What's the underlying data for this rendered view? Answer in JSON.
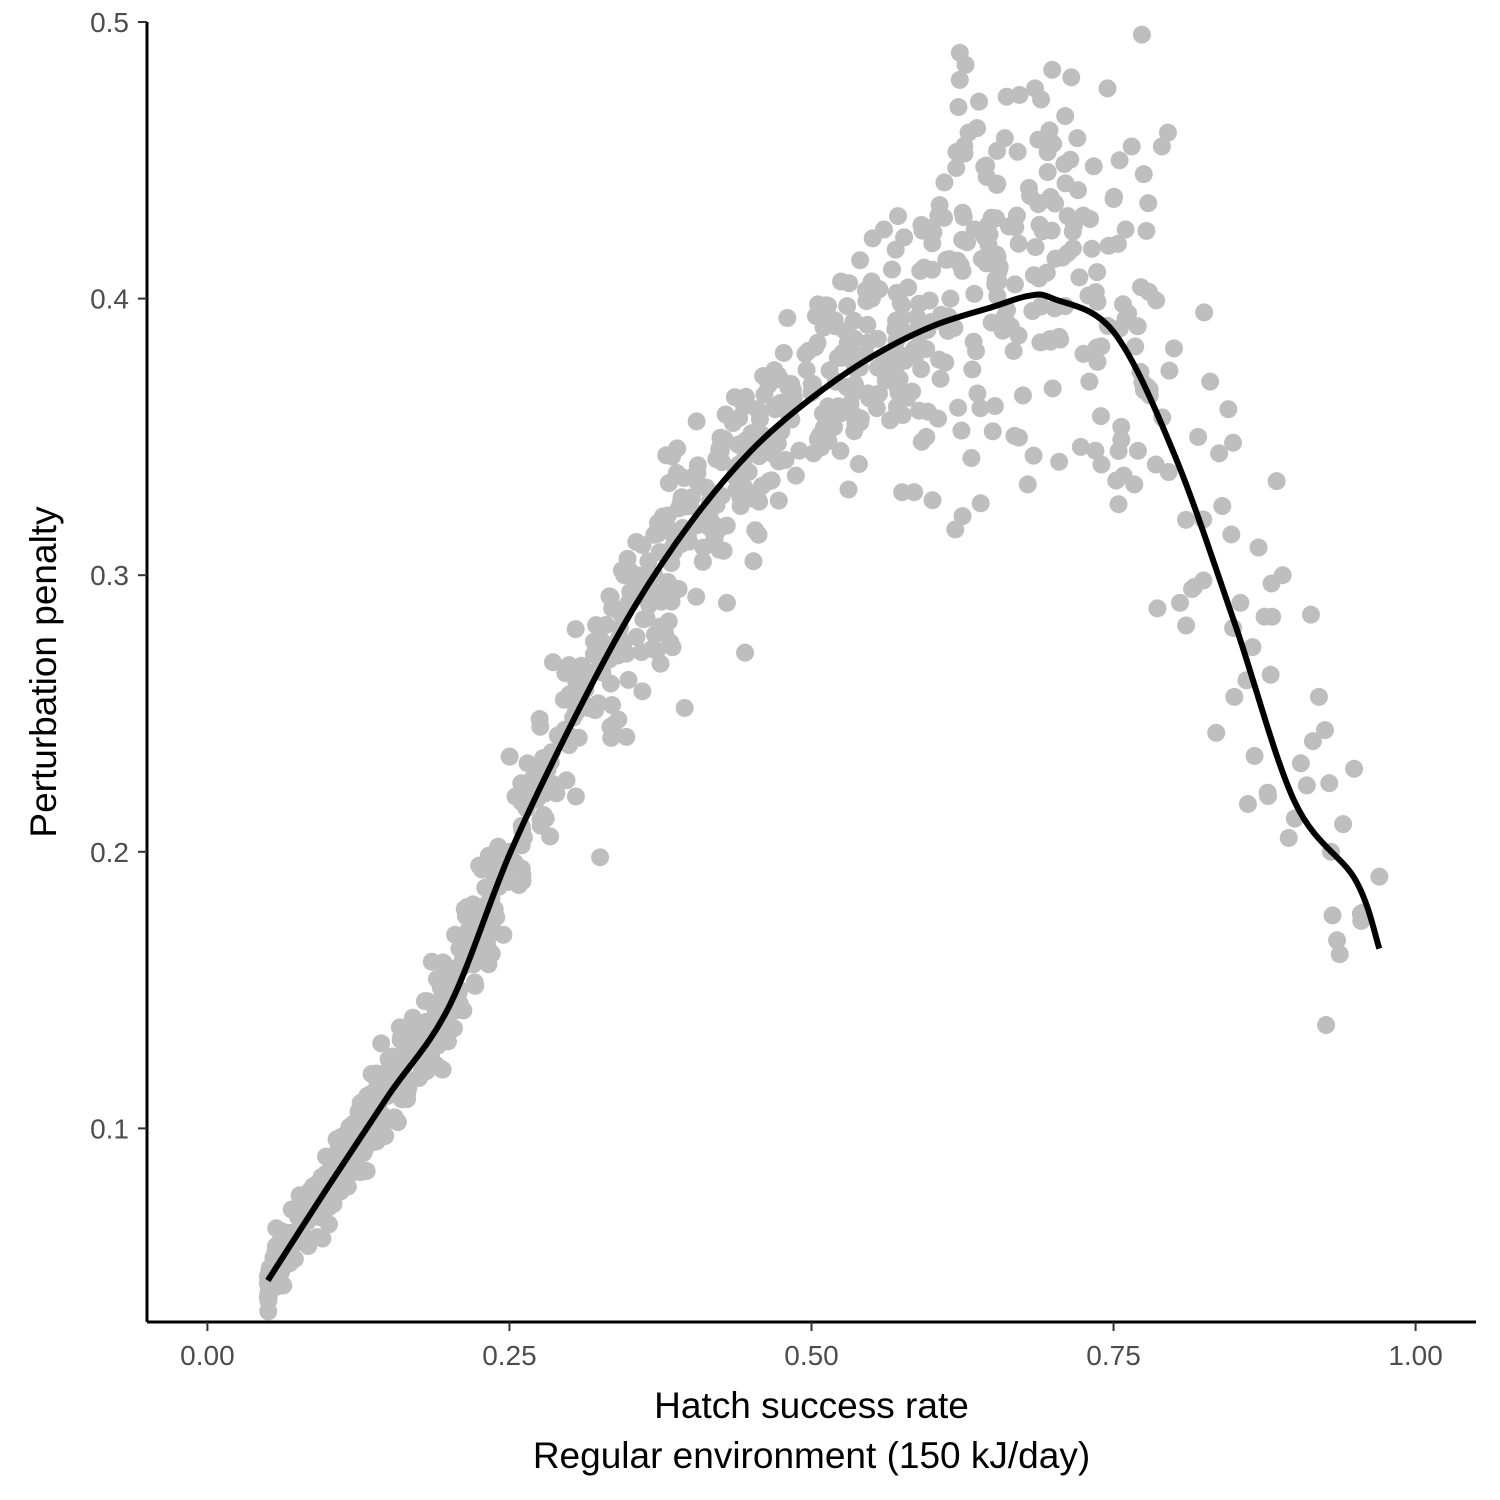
{
  "chart_data": {
    "type": "scatter",
    "xlabel": "Hatch success rate",
    "xlabel2": "Regular environment (150 kJ/day)",
    "ylabel": "Perturbation penalty",
    "xlim": [
      -0.05,
      1.05
    ],
    "ylim": [
      0.03,
      0.5
    ],
    "x_ticks": [
      0.0,
      0.25,
      0.5,
      0.75,
      1.0
    ],
    "x_tick_labels": [
      "0.00",
      "0.25",
      "0.50",
      "0.75",
      "1.00"
    ],
    "y_ticks": [
      0.1,
      0.2,
      0.3,
      0.4,
      0.5
    ],
    "y_tick_labels": [
      "0.1",
      "0.2",
      "0.3",
      "0.4",
      "0.5"
    ],
    "grid": false,
    "legend": "none",
    "colors": {
      "points": "#bebebe",
      "curve": "#000000",
      "axis": "#000000"
    },
    "series": [
      {
        "kind": "points",
        "approximate_count": 1000,
        "points": [
          [
            0.05,
            0.044
          ],
          [
            0.055,
            0.052
          ],
          [
            0.06,
            0.047
          ],
          [
            0.065,
            0.058
          ],
          [
            0.07,
            0.062
          ],
          [
            0.075,
            0.068
          ],
          [
            0.08,
            0.066
          ],
          [
            0.085,
            0.072
          ],
          [
            0.09,
            0.077
          ],
          [
            0.095,
            0.071
          ],
          [
            0.1,
            0.082
          ],
          [
            0.105,
            0.088
          ],
          [
            0.11,
            0.094
          ],
          [
            0.115,
            0.09
          ],
          [
            0.12,
            0.1
          ],
          [
            0.125,
            0.106
          ],
          [
            0.13,
            0.102
          ],
          [
            0.135,
            0.112
          ],
          [
            0.14,
            0.118
          ],
          [
            0.145,
            0.115
          ],
          [
            0.15,
            0.125
          ],
          [
            0.155,
            0.104
          ],
          [
            0.16,
            0.132
          ],
          [
            0.165,
            0.128
          ],
          [
            0.17,
            0.14
          ],
          [
            0.175,
            0.136
          ],
          [
            0.18,
            0.146
          ],
          [
            0.185,
            0.126
          ],
          [
            0.19,
            0.154
          ],
          [
            0.195,
            0.16
          ],
          [
            0.2,
            0.158
          ],
          [
            0.205,
            0.17
          ],
          [
            0.21,
            0.166
          ],
          [
            0.215,
            0.18
          ],
          [
            0.22,
            0.176
          ],
          [
            0.225,
            0.195
          ],
          [
            0.23,
            0.187
          ],
          [
            0.235,
            0.183
          ],
          [
            0.24,
            0.2
          ],
          [
            0.245,
            0.17
          ],
          [
            0.25,
            0.2
          ],
          [
            0.255,
            0.22
          ],
          [
            0.26,
            0.218
          ],
          [
            0.265,
            0.232
          ],
          [
            0.27,
            0.226
          ],
          [
            0.275,
            0.248
          ],
          [
            0.28,
            0.212
          ],
          [
            0.285,
            0.236
          ],
          [
            0.29,
            0.242
          ],
          [
            0.295,
            0.255
          ],
          [
            0.3,
            0.257
          ],
          [
            0.305,
            0.22
          ],
          [
            0.31,
            0.264
          ],
          [
            0.315,
            0.252
          ],
          [
            0.32,
            0.276
          ],
          [
            0.325,
            0.198
          ],
          [
            0.33,
            0.282
          ],
          [
            0.335,
            0.288
          ],
          [
            0.34,
            0.271
          ],
          [
            0.345,
            0.3
          ],
          [
            0.35,
            0.294
          ],
          [
            0.355,
            0.312
          ],
          [
            0.36,
            0.258
          ],
          [
            0.365,
            0.305
          ],
          [
            0.37,
            0.3
          ],
          [
            0.375,
            0.268
          ],
          [
            0.38,
            0.318
          ],
          [
            0.385,
            0.31
          ],
          [
            0.39,
            0.295
          ],
          [
            0.395,
            0.252
          ],
          [
            0.4,
            0.325
          ],
          [
            0.405,
            0.334
          ],
          [
            0.41,
            0.305
          ],
          [
            0.415,
            0.32
          ],
          [
            0.42,
            0.318
          ],
          [
            0.425,
            0.345
          ],
          [
            0.43,
            0.29
          ],
          [
            0.435,
            0.355
          ],
          [
            0.44,
            0.34
          ],
          [
            0.445,
            0.272
          ],
          [
            0.45,
            0.348
          ],
          [
            0.455,
            0.36
          ],
          [
            0.46,
            0.372
          ],
          [
            0.465,
            0.334
          ],
          [
            0.47,
            0.36
          ],
          [
            0.475,
            0.352
          ],
          [
            0.48,
            0.393
          ],
          [
            0.485,
            0.362
          ],
          [
            0.49,
            0.345
          ],
          [
            0.495,
            0.38
          ],
          [
            0.5,
            0.366
          ],
          [
            0.505,
            0.384
          ],
          [
            0.51,
            0.35
          ],
          [
            0.515,
            0.374
          ],
          [
            0.52,
            0.39
          ],
          [
            0.525,
            0.36
          ],
          [
            0.53,
            0.384
          ],
          [
            0.535,
            0.392
          ],
          [
            0.54,
            0.375
          ],
          [
            0.545,
            0.403
          ],
          [
            0.55,
            0.4
          ],
          [
            0.555,
            0.375
          ],
          [
            0.56,
            0.425
          ],
          [
            0.565,
            0.356
          ],
          [
            0.57,
            0.392
          ],
          [
            0.575,
            0.33
          ],
          [
            0.58,
            0.404
          ],
          [
            0.585,
            0.33
          ],
          [
            0.59,
            0.41
          ],
          [
            0.595,
            0.35
          ],
          [
            0.6,
            0.42
          ],
          [
            0.605,
            0.43
          ],
          [
            0.61,
            0.442
          ],
          [
            0.615,
            0.4
          ],
          [
            0.62,
            0.453
          ],
          [
            0.625,
            0.41
          ],
          [
            0.63,
            0.46
          ],
          [
            0.635,
            0.425
          ],
          [
            0.64,
            0.326
          ],
          [
            0.645,
            0.444
          ],
          [
            0.65,
            0.352
          ],
          [
            0.655,
            0.41
          ],
          [
            0.66,
            0.458
          ],
          [
            0.665,
            0.39
          ],
          [
            0.67,
            0.43
          ],
          [
            0.675,
            0.365
          ],
          [
            0.68,
            0.44
          ],
          [
            0.685,
            0.476
          ],
          [
            0.69,
            0.472
          ],
          [
            0.695,
            0.458
          ],
          [
            0.7,
            0.456
          ],
          [
            0.705,
            0.341
          ],
          [
            0.71,
            0.466
          ],
          [
            0.715,
            0.48
          ],
          [
            0.72,
            0.458
          ],
          [
            0.725,
            0.43
          ],
          [
            0.73,
            0.37
          ],
          [
            0.735,
            0.345
          ],
          [
            0.74,
            0.34
          ],
          [
            0.745,
            0.476
          ],
          [
            0.75,
            0.436
          ],
          [
            0.755,
            0.45
          ],
          [
            0.76,
            0.425
          ],
          [
            0.765,
            0.455
          ],
          [
            0.77,
            0.39
          ],
          [
            0.775,
            0.445
          ],
          [
            0.78,
            0.365
          ],
          [
            0.785,
            0.34
          ],
          [
            0.79,
            0.455
          ],
          [
            0.795,
            0.46
          ],
          [
            0.8,
            0.382
          ],
          [
            0.805,
            0.29
          ],
          [
            0.81,
            0.32
          ],
          [
            0.815,
            0.295
          ],
          [
            0.82,
            0.35
          ],
          [
            0.825,
            0.395
          ],
          [
            0.83,
            0.37
          ],
          [
            0.835,
            0.243
          ],
          [
            0.84,
            0.325
          ],
          [
            0.845,
            0.36
          ],
          [
            0.85,
            0.256
          ],
          [
            0.855,
            0.29
          ],
          [
            0.86,
            0.262
          ],
          [
            0.865,
            0.274
          ],
          [
            0.87,
            0.31
          ],
          [
            0.875,
            0.285
          ],
          [
            0.88,
            0.264
          ],
          [
            0.885,
            0.334
          ],
          [
            0.89,
            0.3
          ],
          [
            0.895,
            0.205
          ],
          [
            0.9,
            0.212
          ],
          [
            0.905,
            0.232
          ],
          [
            0.91,
            0.224
          ],
          [
            0.915,
            0.24
          ],
          [
            0.92,
            0.256
          ],
          [
            0.925,
            0.244
          ],
          [
            0.93,
            0.2
          ],
          [
            0.935,
            0.168
          ],
          [
            0.94,
            0.21
          ],
          [
            0.955,
            0.175
          ],
          [
            0.97,
            0.191
          ]
        ]
      },
      {
        "kind": "fit-curve",
        "points": [
          [
            0.05,
            0.045
          ],
          [
            0.1,
            0.079
          ],
          [
            0.15,
            0.112
          ],
          [
            0.2,
            0.144
          ],
          [
            0.25,
            0.199
          ],
          [
            0.3,
            0.245
          ],
          [
            0.35,
            0.286
          ],
          [
            0.4,
            0.319
          ],
          [
            0.45,
            0.345
          ],
          [
            0.5,
            0.364
          ],
          [
            0.55,
            0.379
          ],
          [
            0.6,
            0.39
          ],
          [
            0.65,
            0.397
          ],
          [
            0.68,
            0.401
          ],
          [
            0.7,
            0.4
          ],
          [
            0.75,
            0.388
          ],
          [
            0.8,
            0.344
          ],
          [
            0.85,
            0.283
          ],
          [
            0.9,
            0.218
          ],
          [
            0.95,
            0.19
          ],
          [
            0.97,
            0.165
          ]
        ]
      }
    ]
  }
}
